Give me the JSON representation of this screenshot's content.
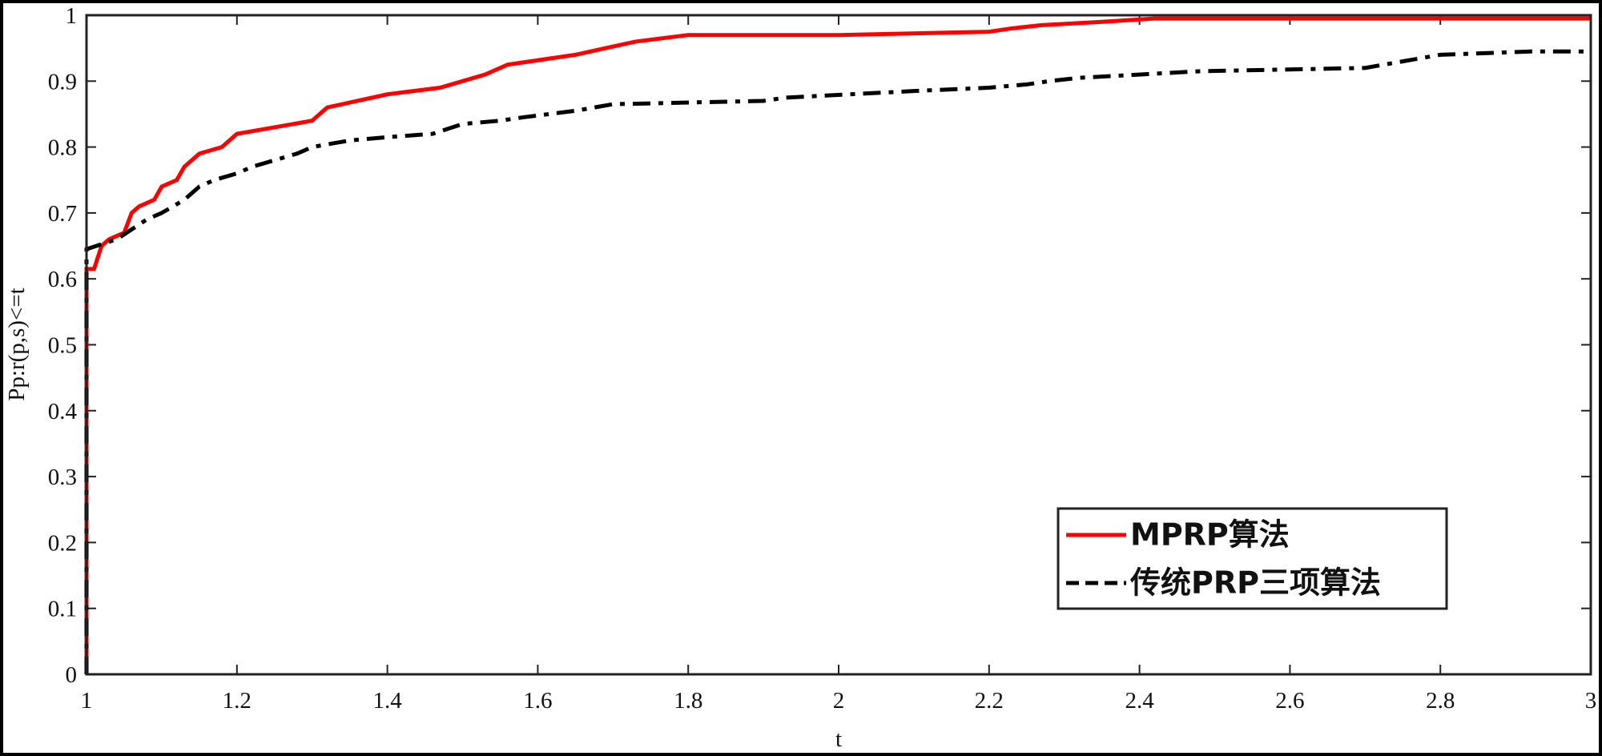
{
  "chart_data": {
    "type": "line",
    "xlabel": "t",
    "ylabel": "Pp:r(p,s)<=t",
    "xlim": [
      1,
      3
    ],
    "ylim": [
      0,
      1
    ],
    "xticks": [
      1,
      1.2,
      1.4,
      1.6,
      1.8,
      2,
      2.2,
      2.4,
      2.6,
      2.8,
      3
    ],
    "yticks": [
      0,
      0.1,
      0.2,
      0.3,
      0.4,
      0.5,
      0.6,
      0.7,
      0.8,
      0.9,
      1
    ],
    "legend": "lower right",
    "series": [
      {
        "name": "MPRP算法",
        "color": "#ff0000",
        "dash": "solid",
        "x": [
          1,
          1,
          1.01,
          1.02,
          1.03,
          1.05,
          1.06,
          1.07,
          1.09,
          1.1,
          1.12,
          1.13,
          1.15,
          1.18,
          1.2,
          1.25,
          1.3,
          1.32,
          1.36,
          1.4,
          1.47,
          1.5,
          1.53,
          1.56,
          1.65,
          1.73,
          1.8,
          2,
          2.2,
          2.23,
          2.27,
          2.35,
          2.42,
          3
        ],
        "values": [
          0,
          0.615,
          0.615,
          0.65,
          0.66,
          0.67,
          0.7,
          0.71,
          0.72,
          0.74,
          0.75,
          0.77,
          0.79,
          0.8,
          0.82,
          0.83,
          0.84,
          0.86,
          0.87,
          0.88,
          0.89,
          0.9,
          0.91,
          0.925,
          0.94,
          0.96,
          0.97,
          0.97,
          0.975,
          0.98,
          0.985,
          0.99,
          0.995,
          0.995
        ]
      },
      {
        "name": "传统PRP三项算法",
        "color": "#000000",
        "dash": "dashed",
        "x": [
          1,
          1,
          1.04,
          1.06,
          1.08,
          1.1,
          1.13,
          1.15,
          1.17,
          1.2,
          1.22,
          1.25,
          1.28,
          1.3,
          1.35,
          1.4,
          1.46,
          1.5,
          1.55,
          1.58,
          1.65,
          1.7,
          1.9,
          1.93,
          2.1,
          2.2,
          2.25,
          2.28,
          2.32,
          2.4,
          2.48,
          2.7,
          2.75,
          2.8,
          2.92,
          3
        ],
        "values": [
          0,
          0.645,
          0.66,
          0.675,
          0.69,
          0.7,
          0.72,
          0.74,
          0.75,
          0.76,
          0.77,
          0.78,
          0.79,
          0.8,
          0.81,
          0.815,
          0.82,
          0.835,
          0.84,
          0.845,
          0.855,
          0.865,
          0.87,
          0.875,
          0.885,
          0.89,
          0.895,
          0.9,
          0.905,
          0.91,
          0.915,
          0.92,
          0.93,
          0.94,
          0.945,
          0.945
        ]
      }
    ]
  }
}
